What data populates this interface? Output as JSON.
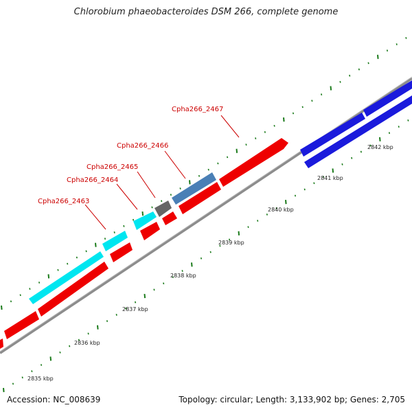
{
  "title": "Chlorobium phaeobacteroides DSM 266, complete genome",
  "footer": {
    "accession": "Accession: NC_008639",
    "summary": "Topology: circular; Length: 3,133,902 bp; Genes: 2,705"
  },
  "colors": {
    "backbone": "#8c8c8c",
    "red": "#ee0000",
    "cyan": "#00e6f0",
    "blue": "#1a1adc",
    "steel": "#4a7fb6",
    "gray": "#666666",
    "tick": "#1a7a1a",
    "gene_label": "#cc0000"
  },
  "scale_labels": [
    "2835 kbp",
    "2836 kbp",
    "2837 kbp",
    "2838 kbp",
    "2839 kbp",
    "2840 kbp",
    "2841 kbp",
    "2842 kbp"
  ],
  "gene_labels": [
    "Cpha266_2463",
    "Cpha266_2464",
    "Cpha266_2465",
    "Cpha266_2466",
    "Cpha266_2467"
  ]
}
